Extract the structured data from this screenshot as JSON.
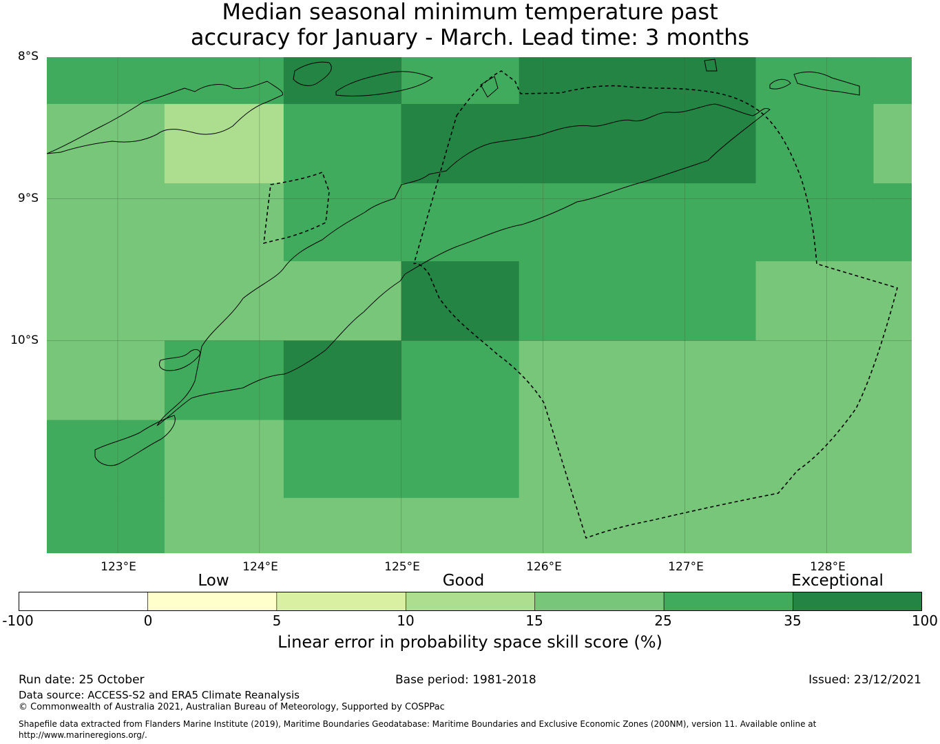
{
  "title": {
    "line1": "Median seasonal minimum temperature past",
    "line2": "accuracy for January - March. Lead time: 3 months"
  },
  "map": {
    "lat_labels": [
      "8°S",
      "9°S",
      "10°S"
    ],
    "lon_labels": [
      "123°E",
      "124°E",
      "125°E",
      "126°E",
      "127°E",
      "128°E"
    ],
    "grid_lon_edges": [
      122.5,
      123.33,
      124.17,
      125.0,
      125.83,
      126.67,
      127.5,
      128.33,
      128.6
    ],
    "grid_lat_edges": [
      8.0,
      8.33,
      8.89,
      9.44,
      10.0,
      10.56,
      11.11,
      11.5
    ],
    "cell_classes": [
      [
        5,
        5,
        6,
        5,
        6,
        6,
        5,
        5
      ],
      [
        4,
        3,
        5,
        6,
        6,
        6,
        5,
        4
      ],
      [
        4,
        4,
        5,
        5,
        5,
        5,
        5,
        5
      ],
      [
        4,
        4,
        4,
        6,
        5,
        5,
        4,
        4
      ],
      [
        4,
        5,
        6,
        5,
        4,
        4,
        4,
        4
      ],
      [
        5,
        4,
        5,
        5,
        4,
        4,
        4,
        4
      ],
      [
        5,
        4,
        4,
        4,
        4,
        4,
        4,
        4
      ]
    ]
  },
  "colorbar": {
    "category_labels": [
      "Low",
      "Good",
      "Exceptional"
    ],
    "tick_labels": [
      "-100",
      "0",
      "5",
      "10",
      "15",
      "25",
      "35",
      "100"
    ],
    "colors": [
      "#ffffff",
      "#ffffcc",
      "#d9f0a3",
      "#addd8e",
      "#78c679",
      "#41ab5d",
      "#238443"
    ],
    "title": "Linear error in probability space skill score (%)"
  },
  "footer": {
    "run_date": "Run date: 25 October",
    "base_period": "Base period: 1981-2018",
    "issued": "Issued: 23/12/2021",
    "data_source": "Data source: ACCESS-S2 and ERA5 Climate Reanalysis",
    "copyright": "© Commonwealth of Australia 2021, Australian Bureau of Meteorology, Supported by COSPPac",
    "shapefile_line1": "Shapefile data extracted from Flanders Marine Institute (2019), Maritime Boundaries Geodatabase: Maritime Boundaries and Exclusive Economic Zones (200NM), version 11. Available online at",
    "shapefile_line2": "http://www.marineregions.org/."
  }
}
